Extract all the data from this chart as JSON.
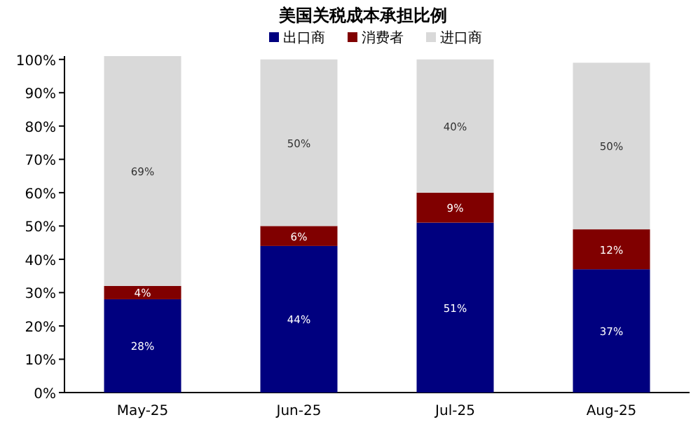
{
  "chart_data": {
    "type": "bar",
    "stacked": true,
    "title": "美国关税成本承担比例",
    "categories": [
      "May-25",
      "Jun-25",
      "Jul-25",
      "Aug-25"
    ],
    "series": [
      {
        "name": "出口商",
        "color": "#00007f",
        "values": [
          28,
          44,
          51,
          37
        ],
        "value_labels": [
          "28%",
          "44%",
          "51%",
          "37%"
        ]
      },
      {
        "name": "消费者",
        "color": "#800000",
        "values": [
          4,
          6,
          9,
          12
        ],
        "value_labels": [
          "4%",
          "6%",
          "9%",
          "12%"
        ]
      },
      {
        "name": "进口商",
        "color": "#d9d9d9",
        "values": [
          69,
          50,
          40,
          50
        ],
        "value_labels": [
          "69%",
          "50%",
          "40%",
          "50%"
        ]
      }
    ],
    "ylim": [
      0,
      101
    ],
    "yticks": [
      {
        "value": 0,
        "label": "0%"
      },
      {
        "value": 10,
        "label": "10%"
      },
      {
        "value": 20,
        "label": "20%"
      },
      {
        "value": 30,
        "label": "30%"
      },
      {
        "value": 40,
        "label": "40%"
      },
      {
        "value": 50,
        "label": "50%"
      },
      {
        "value": 60,
        "label": "60%"
      },
      {
        "value": 70,
        "label": "70%"
      },
      {
        "value": 80,
        "label": "80%"
      },
      {
        "value": 90,
        "label": "90%"
      },
      {
        "value": 100,
        "label": "100%"
      }
    ],
    "legend": "top right",
    "grid": false
  }
}
